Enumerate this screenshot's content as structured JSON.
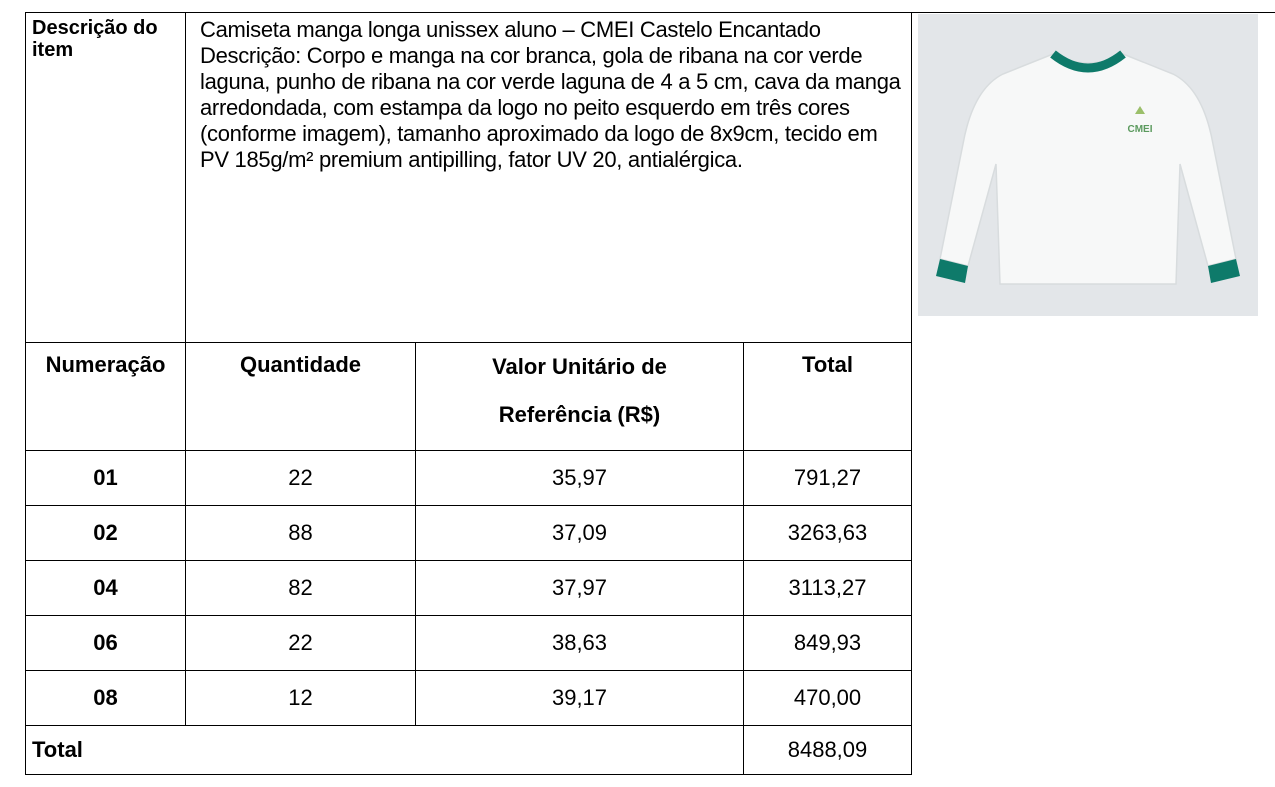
{
  "item": {
    "label": "Descrição do item",
    "name": "Camiseta manga longa unissex aluno – CMEI Castelo Encantado",
    "description": "Descrição: Corpo e manga na cor branca, gola de ribana na cor verde laguna, punho de ribana na cor verde laguna de 4 a 5 cm, cava da manga arredondada, com estampa da logo no peito esquerdo em três cores (conforme imagem), tamanho aproximado da logo de 8x9cm, tecido em PV 185g/m² premium antipilling, fator UV 20, antialérgica."
  },
  "image": {
    "logo": "CMEI"
  },
  "table": {
    "header": [
      "Numeração",
      "Quantidade",
      "Valor Unitário de Referência (R$)",
      "Total"
    ],
    "rows": [
      [
        "01",
        "22",
        "35,97",
        "791,27"
      ],
      [
        "02",
        "88",
        "37,09",
        "3263,63"
      ],
      [
        "04",
        "82",
        "37,97",
        "3113,27"
      ],
      [
        "06",
        "22",
        "38,63",
        "849,93"
      ],
      [
        "08",
        "12",
        "39,17",
        "470,00"
      ]
    ],
    "total": {
      "label": "Total",
      "value": "8488,09"
    }
  }
}
